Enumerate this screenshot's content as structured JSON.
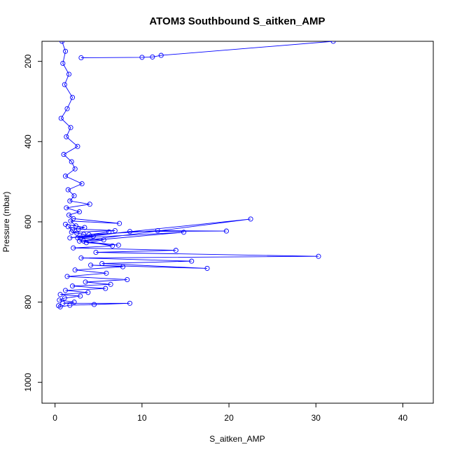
{
  "chart_data": {
    "type": "line",
    "title": "ATOM3 Southbound S_aitken_AMP",
    "xlabel": "S_aitken_AMP",
    "ylabel": "Pressure (mbar)",
    "xlim": [
      -1.5,
      43.5
    ],
    "ylim": [
      1052,
      150
    ],
    "y_reversed": true,
    "x_ticks": [
      0,
      10,
      20,
      30,
      40
    ],
    "y_ticks": [
      200,
      400,
      600,
      800,
      1000
    ],
    "grid": false,
    "legend": "none",
    "marker": "open-circle",
    "series_color": "#0000ff",
    "series": [
      {
        "x": [
          0.8,
          1.2,
          0.9,
          1.6,
          1.1,
          2.0,
          1.4,
          0.7,
          1.8,
          1.3,
          2.6,
          1.0,
          1.9,
          2.3,
          1.2,
          3.1,
          1.5,
          2.2,
          1.7,
          4.0,
          1.3,
          2.8,
          1.6,
          2.1,
          7.4,
          1.8,
          2.4,
          1.2,
          3.4,
          2.0,
          1.5,
          2.7,
          6.9,
          1.9,
          3.3,
          2.5,
          4.4,
          2.9,
          5.6,
          3.6,
          7.3,
          2.8,
          22.5,
          1.7,
          6.2,
          3.9,
          11.8,
          19.7,
          8.6,
          2.6,
          14.8,
          3.3,
          6.6,
          2.1,
          13.9,
          4.7,
          30.3,
          3.0,
          15.7,
          5.4,
          17.5,
          4.1,
          7.8,
          2.3,
          5.9,
          1.4,
          8.3,
          3.5,
          6.4,
          2.0,
          5.8,
          1.2,
          3.8,
          0.6,
          2.9,
          1.1,
          0.5,
          2.2,
          0.9,
          8.6,
          4.5,
          1.7,
          0.6,
          0.4
        ],
        "y": [
          150,
          175,
          205,
          232,
          258,
          290,
          318,
          342,
          365,
          388,
          412,
          432,
          450,
          468,
          486,
          505,
          520,
          535,
          548,
          556,
          565,
          575,
          583,
          592,
          604,
          598,
          610,
          606,
          614,
          620,
          612,
          618,
          622,
          626,
          631,
          628,
          636,
          640,
          645,
          652,
          658,
          648,
          593,
          640,
          625,
          632,
          622,
          623,
          624,
          640,
          626,
          648,
          660,
          665,
          671,
          676,
          686,
          690,
          698,
          704,
          716,
          708,
          712,
          720,
          728,
          736,
          744,
          750,
          756,
          760,
          766,
          771,
          776,
          781,
          785,
          790,
          795,
          800,
          803,
          803,
          806,
          808,
          812,
          809
        ]
      }
    ],
    "spike_segments": [
      {
        "x": [
          3.0,
          10.0,
          11.2,
          12.2,
          32.0
        ],
        "y": [
          191,
          190,
          189,
          185,
          150
        ]
      }
    ]
  }
}
